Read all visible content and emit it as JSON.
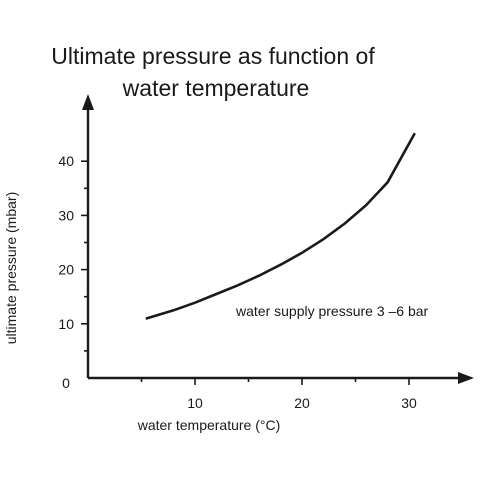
{
  "chart_data": {
    "type": "line",
    "title_lines": [
      "Ultimate pressure as function of",
      "water temperature"
    ],
    "xlabel": "water temperature (°C)",
    "ylabel": "ultimate pressure (mbar)",
    "xlim": [
      0,
      35
    ],
    "ylim": [
      0,
      48
    ],
    "x_ticks_major": [
      10,
      20,
      30
    ],
    "x_ticks_minor": [
      5,
      15,
      25
    ],
    "y_ticks_major": [
      10,
      20,
      30,
      40
    ],
    "y_ticks_minor": [
      5,
      15,
      25,
      35
    ],
    "origin_label": "0",
    "grid": false,
    "annotation": "water supply pressure 3 –6 bar",
    "series": [
      {
        "x": [
          5.5,
          8,
          10,
          12,
          14,
          16,
          18,
          20,
          22,
          24,
          26,
          28,
          30.5
        ],
        "y": [
          11,
          12.5,
          13.9,
          15.5,
          17.1,
          18.9,
          20.9,
          23.1,
          25.6,
          28.5,
          31.9,
          36.1,
          45
        ]
      }
    ]
  }
}
